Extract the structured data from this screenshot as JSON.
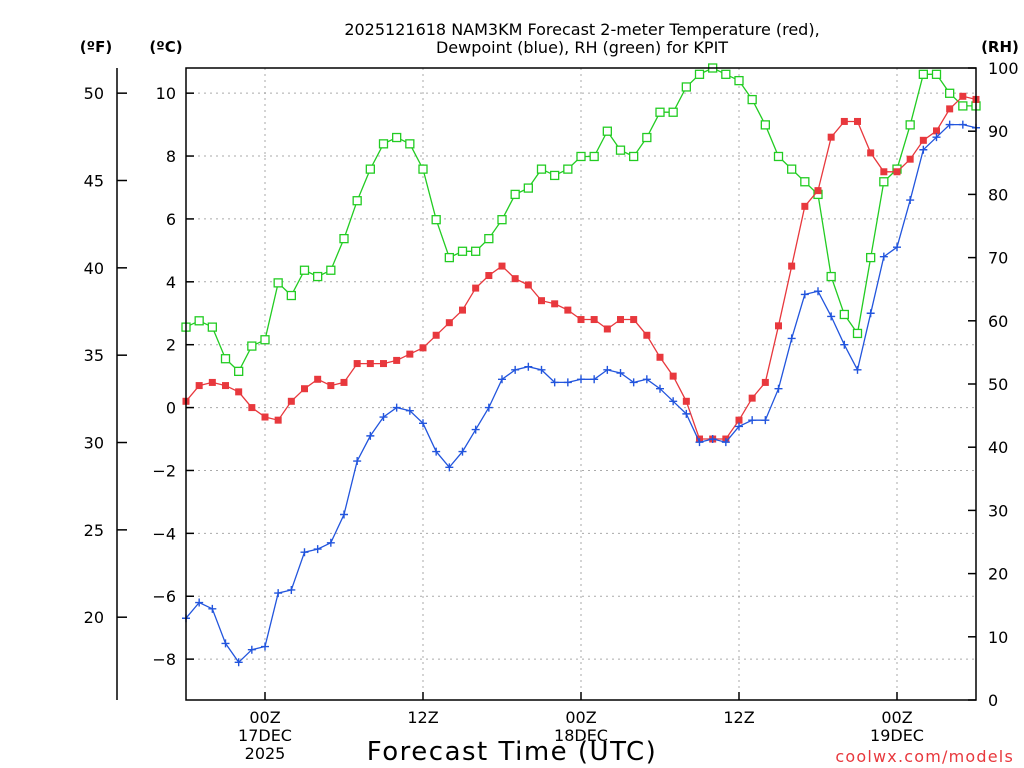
{
  "chart_data": {
    "type": "line",
    "title_line1": "2025121618 NAM3KM Forecast 2-meter Temperature (red),",
    "title_line2": "Dewpoint (blue), RH (green) for KPIT",
    "xlabel": "Forecast Time (UTC)",
    "watermark": "coolwx.com/models",
    "axis_labels": {
      "fahrenheit": "(ºF)",
      "celsius": "(ºC)",
      "rh": "(RH)"
    },
    "x_range_hours": [
      0,
      60
    ],
    "celsius_range": [
      -9.3,
      10.8
    ],
    "rh_range": [
      0,
      100
    ],
    "celsius_ticks": [
      {
        "v": -8,
        "label": "−8"
      },
      {
        "v": -6,
        "label": "−6"
      },
      {
        "v": -4,
        "label": "−4"
      },
      {
        "v": -2,
        "label": "−2"
      },
      {
        "v": 0,
        "label": "0"
      },
      {
        "v": 2,
        "label": "2"
      },
      {
        "v": 4,
        "label": "4"
      },
      {
        "v": 6,
        "label": "6"
      },
      {
        "v": 8,
        "label": "8"
      },
      {
        "v": 10,
        "label": "10"
      }
    ],
    "fahrenheit_ticks": [
      {
        "v": 20,
        "label": "20"
      },
      {
        "v": 25,
        "label": "25"
      },
      {
        "v": 30,
        "label": "30"
      },
      {
        "v": 35,
        "label": "35"
      },
      {
        "v": 40,
        "label": "40"
      },
      {
        "v": 45,
        "label": "45"
      },
      {
        "v": 50,
        "label": "50"
      }
    ],
    "rh_ticks": [
      {
        "v": 0,
        "label": "0"
      },
      {
        "v": 10,
        "label": "10"
      },
      {
        "v": 20,
        "label": "20"
      },
      {
        "v": 30,
        "label": "30"
      },
      {
        "v": 40,
        "label": "40"
      },
      {
        "v": 50,
        "label": "50"
      },
      {
        "v": 60,
        "label": "60"
      },
      {
        "v": 70,
        "label": "70"
      },
      {
        "v": 80,
        "label": "80"
      },
      {
        "v": 90,
        "label": "90"
      },
      {
        "v": 100,
        "label": "100"
      }
    ],
    "x_ticks": [
      {
        "hour": 6,
        "lines": [
          "00Z",
          "17DEC",
          "2025"
        ]
      },
      {
        "hour": 18,
        "lines": [
          "12Z"
        ]
      },
      {
        "hour": 30,
        "lines": [
          "00Z",
          "18DEC"
        ]
      },
      {
        "hour": 42,
        "lines": [
          "12Z"
        ]
      },
      {
        "hour": 54,
        "lines": [
          "00Z",
          "19DEC"
        ]
      }
    ],
    "colors": {
      "temperature": "#e8383d",
      "dewpoint": "#2255dd",
      "rh": "#22cc22",
      "grid": "#aaaaaa",
      "watermark": "#e8383d"
    },
    "series": [
      {
        "name": "Temperature (°C)",
        "axis": "celsius",
        "marker": "filled-square",
        "values": [
          0.2,
          0.7,
          0.8,
          0.7,
          0.5,
          0.0,
          -0.3,
          -0.4,
          0.2,
          0.6,
          0.9,
          0.7,
          0.8,
          1.4,
          1.4,
          1.4,
          1.5,
          1.7,
          1.9,
          2.3,
          2.7,
          3.1,
          3.8,
          4.2,
          4.5,
          4.1,
          3.9,
          3.4,
          3.3,
          3.1,
          2.8,
          2.8,
          2.5,
          2.8,
          2.8,
          2.3,
          1.6,
          1.0,
          0.2,
          -1.0,
          -1.0,
          -1.0,
          -0.4,
          0.3,
          0.8,
          2.6,
          4.5,
          6.4,
          6.9,
          8.6,
          9.1,
          9.1,
          8.1,
          7.5,
          7.5,
          7.9,
          8.5,
          8.8,
          9.5,
          9.9,
          9.8
        ]
      },
      {
        "name": "Dewpoint (°C)",
        "axis": "celsius",
        "marker": "plus",
        "values": [
          -6.7,
          -6.2,
          -6.4,
          -7.5,
          -8.1,
          -7.7,
          -7.6,
          -5.9,
          -5.8,
          -4.6,
          -4.5,
          -4.3,
          -3.4,
          -1.7,
          -0.9,
          -0.3,
          0.0,
          -0.1,
          -0.5,
          -1.4,
          -1.9,
          -1.4,
          -0.7,
          0.0,
          0.9,
          1.2,
          1.3,
          1.2,
          0.8,
          0.8,
          0.9,
          0.9,
          1.2,
          1.1,
          0.8,
          0.9,
          0.6,
          0.2,
          -0.2,
          -1.1,
          -1.0,
          -1.1,
          -0.6,
          -0.4,
          -0.4,
          0.6,
          2.2,
          3.6,
          3.7,
          2.9,
          2.0,
          1.2,
          3.0,
          4.8,
          5.1,
          6.6,
          8.2,
          8.6,
          9.0,
          9.0,
          8.9
        ]
      },
      {
        "name": "RH (%)",
        "axis": "rh",
        "marker": "open-square",
        "values": [
          59,
          60,
          59,
          54,
          52,
          56,
          57,
          66,
          64,
          68,
          67,
          68,
          73,
          79,
          84,
          88,
          89,
          88,
          84,
          76,
          70,
          71,
          71,
          73,
          76,
          80,
          81,
          84,
          83,
          84,
          86,
          86,
          90,
          87,
          86,
          89,
          93,
          93,
          97,
          99,
          100,
          99,
          98,
          95,
          91,
          86,
          84,
          82,
          80,
          67,
          61,
          58,
          70,
          82,
          84,
          91,
          99,
          99,
          96,
          94,
          94
        ]
      }
    ]
  }
}
